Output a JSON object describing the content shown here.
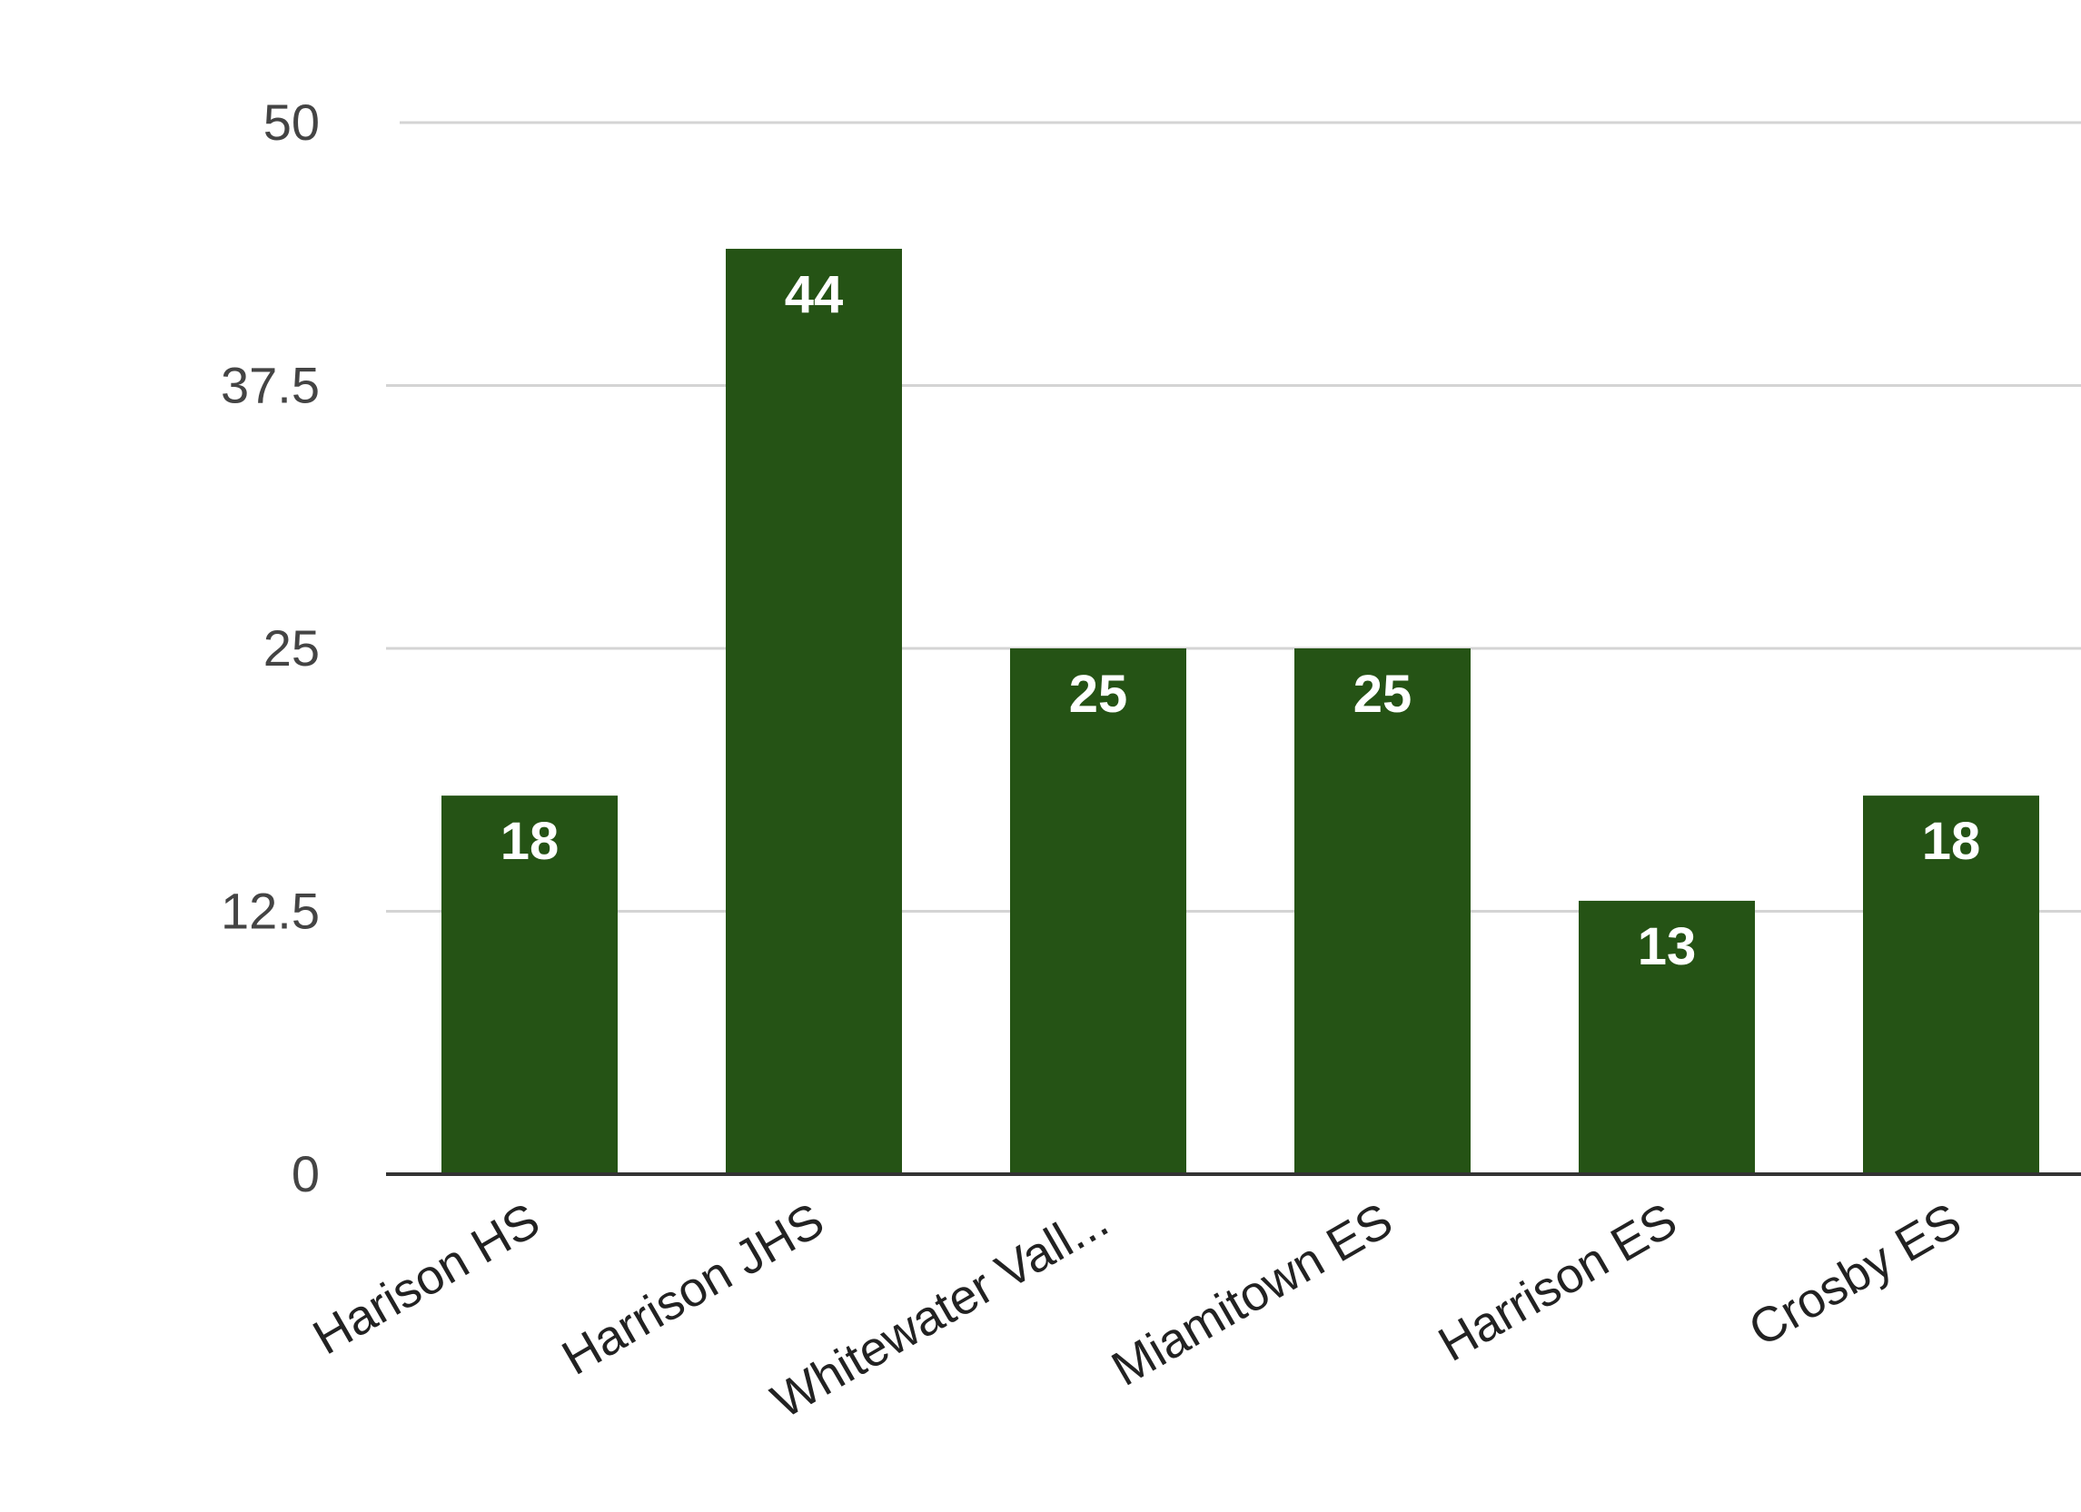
{
  "chart_data": {
    "type": "bar",
    "title": "",
    "xlabel": "",
    "ylabel": "",
    "categories": [
      "Harison HS",
      "Harrison JHS",
      "Whitewater Vall...",
      "Miamitown ES",
      "Harrison ES",
      "Crosby ES"
    ],
    "values": [
      18,
      44,
      25,
      25,
      13,
      18
    ],
    "data_labels": [
      "18",
      "44",
      "25",
      "25",
      "13",
      "18"
    ],
    "ylim": [
      0,
      50
    ],
    "yticks": [
      0,
      12.5,
      25,
      37.5,
      50
    ],
    "ytick_labels": [
      "0",
      "12.5",
      "25",
      "37.5",
      "50"
    ],
    "grid": true,
    "legend": "none",
    "colors": {
      "bar": "#255315",
      "label_text": "#ffffff",
      "gridline": "#d4d4d4",
      "baseline": "#333333"
    }
  }
}
